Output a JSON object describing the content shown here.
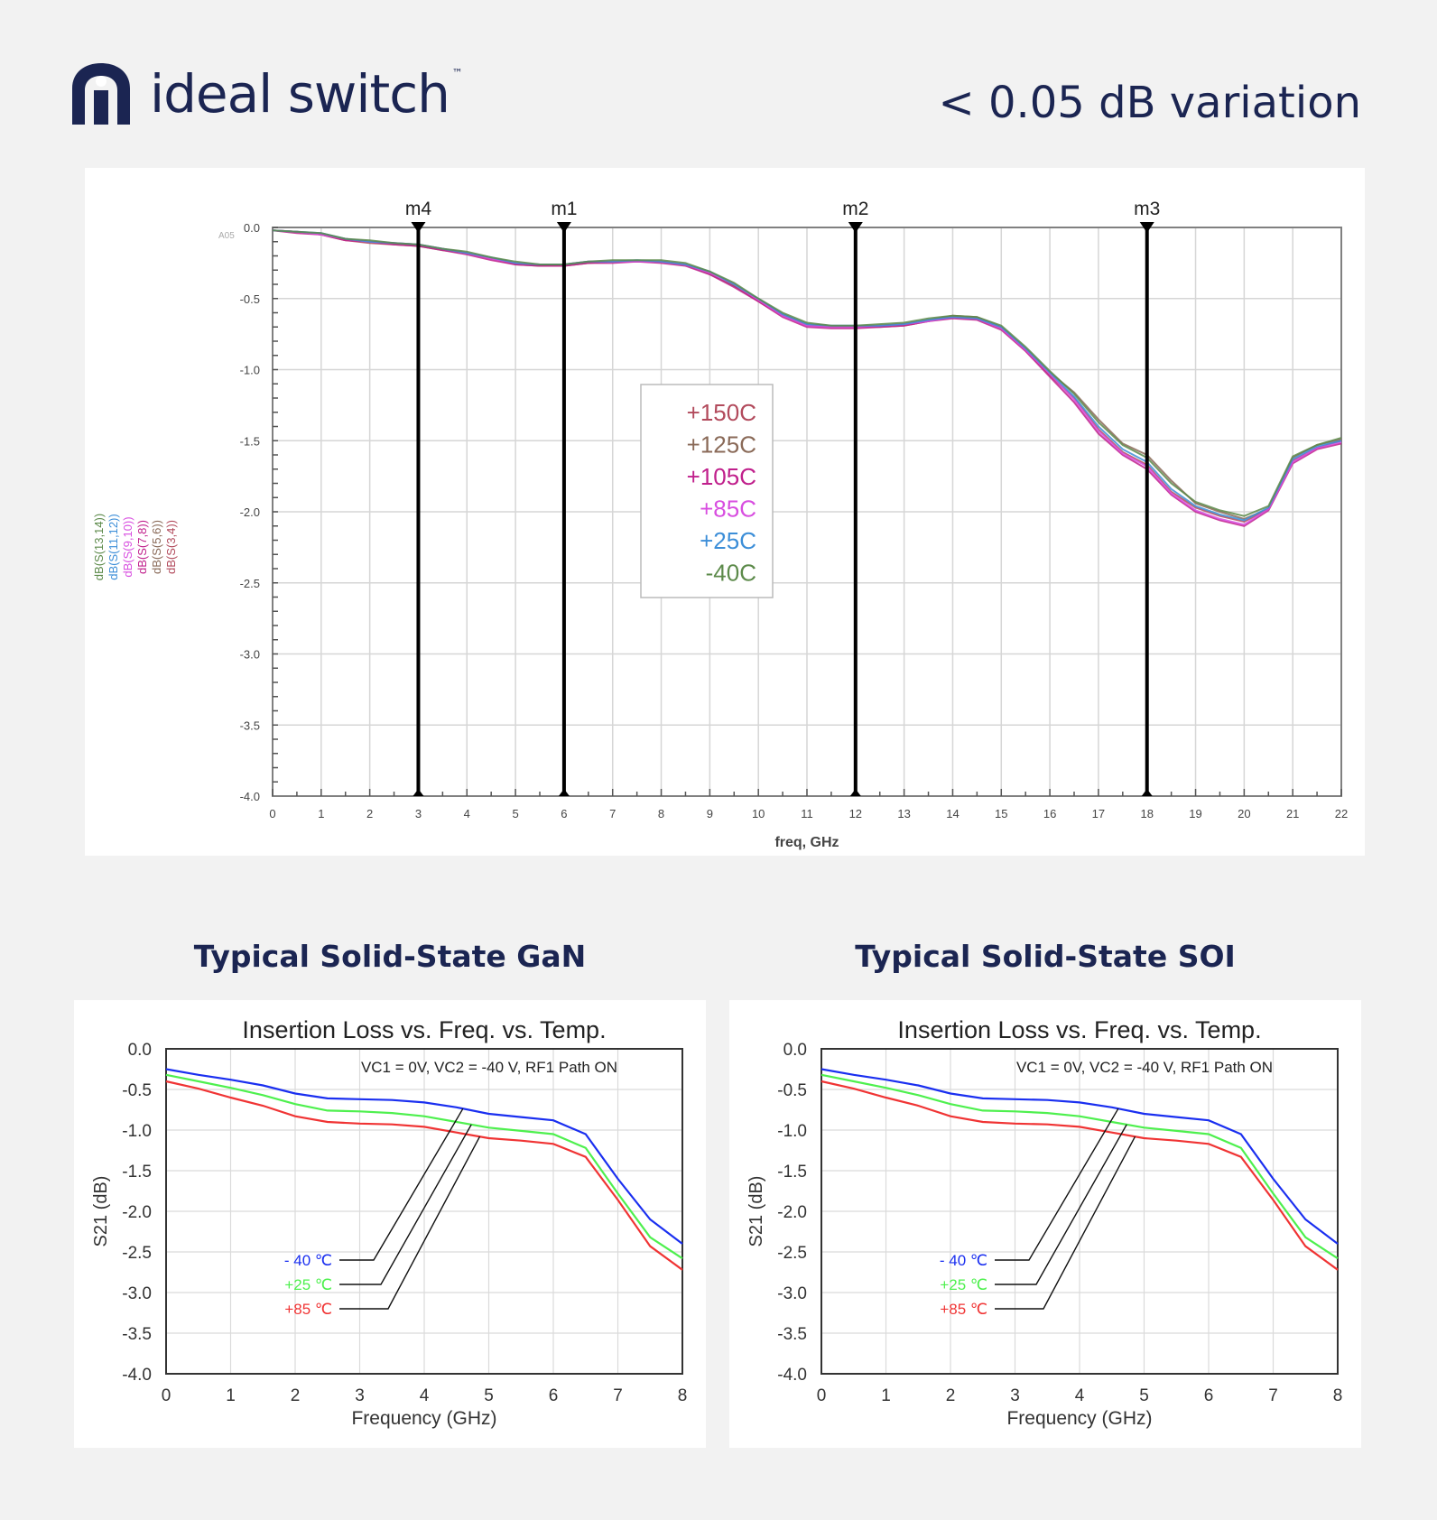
{
  "brand": {
    "name": "ideal switch",
    "tm": "™"
  },
  "headline": "< 0.05 dB variation",
  "colors": {
    "navy": "#1b2552",
    "blue": "#1a2ff0",
    "green": "#4ef04e",
    "red": "#f03434"
  },
  "icons": {
    "logo": "ideal-power-logo-icon"
  },
  "chart_data": [
    {
      "type": "line",
      "title": "",
      "xlabel": "freq, GHz",
      "ylabel": "",
      "xlim": [
        0,
        22
      ],
      "ylim": [
        -4.0,
        0.0
      ],
      "xticks": [
        "0",
        "1",
        "2",
        "3",
        "4",
        "5",
        "6",
        "7",
        "8",
        "9",
        "10",
        "11",
        "12",
        "13",
        "14",
        "15",
        "16",
        "17",
        "18",
        "19",
        "20",
        "21",
        "22"
      ],
      "yticks": [
        "0.0",
        "-0.5",
        "-1.0",
        "-1.5",
        "-2.0",
        "-2.5",
        "-3.0",
        "-3.5",
        "-4.0"
      ],
      "corner_label": "A05",
      "ylabel_series": [
        "dB(S(13,14))",
        "dB(S(11,12))",
        "dB(S(9,10))",
        "dB(S(7,8))",
        "dB(S(5,6))",
        "dB(S(3,4))"
      ],
      "markers": [
        {
          "name": "m4",
          "x": 3
        },
        {
          "name": "m1",
          "x": 6
        },
        {
          "name": "m2",
          "x": 12
        },
        {
          "name": "m3",
          "x": 18
        }
      ],
      "legend_position": "center",
      "grid": true,
      "x": [
        0,
        0.5,
        1,
        1.5,
        2,
        2.5,
        3,
        3.5,
        4,
        4.5,
        5,
        5.5,
        6,
        6.5,
        7,
        7.5,
        8,
        8.5,
        9,
        9.5,
        10,
        10.5,
        11,
        11.5,
        12,
        12.5,
        13,
        13.5,
        14,
        14.5,
        15,
        15.5,
        16,
        16.5,
        17,
        17.5,
        18,
        18.5,
        19,
        19.5,
        20,
        20.5,
        21,
        21.5,
        22
      ],
      "series": [
        {
          "name": "+150C",
          "color": "#b24a5c",
          "values": [
            -0.02,
            -0.03,
            -0.05,
            -0.09,
            -0.11,
            -0.12,
            -0.13,
            -0.15,
            -0.18,
            -0.22,
            -0.26,
            -0.27,
            -0.27,
            -0.25,
            -0.24,
            -0.24,
            -0.24,
            -0.26,
            -0.32,
            -0.41,
            -0.52,
            -0.62,
            -0.69,
            -0.7,
            -0.7,
            -0.7,
            -0.69,
            -0.66,
            -0.63,
            -0.64,
            -0.71,
            -0.86,
            -1.04,
            -1.2,
            -1.42,
            -1.58,
            -1.67,
            -1.86,
            -1.97,
            -2.03,
            -2.07,
            -1.98,
            -1.64,
            -1.55,
            -1.5
          ]
        },
        {
          "name": "+125C",
          "color": "#8a6a58",
          "values": [
            -0.02,
            -0.03,
            -0.05,
            -0.08,
            -0.1,
            -0.11,
            -0.13,
            -0.16,
            -0.18,
            -0.22,
            -0.25,
            -0.27,
            -0.26,
            -0.25,
            -0.24,
            -0.24,
            -0.24,
            -0.26,
            -0.33,
            -0.41,
            -0.51,
            -0.61,
            -0.68,
            -0.7,
            -0.7,
            -0.69,
            -0.68,
            -0.65,
            -0.62,
            -0.63,
            -0.7,
            -0.85,
            -1.02,
            -1.16,
            -1.35,
            -1.52,
            -1.6,
            -1.78,
            -1.94,
            -2.0,
            -2.05,
            -1.98,
            -1.62,
            -1.53,
            -1.49
          ]
        },
        {
          "name": "+105C",
          "color": "#c0208c",
          "values": [
            -0.02,
            -0.04,
            -0.05,
            -0.09,
            -0.1,
            -0.12,
            -0.13,
            -0.16,
            -0.19,
            -0.23,
            -0.26,
            -0.27,
            -0.27,
            -0.25,
            -0.25,
            -0.24,
            -0.25,
            -0.27,
            -0.33,
            -0.42,
            -0.52,
            -0.63,
            -0.7,
            -0.71,
            -0.71,
            -0.7,
            -0.69,
            -0.66,
            -0.64,
            -0.65,
            -0.72,
            -0.87,
            -1.05,
            -1.23,
            -1.45,
            -1.6,
            -1.7,
            -1.88,
            -2.0,
            -2.06,
            -2.1,
            -1.99,
            -1.66,
            -1.56,
            -1.52
          ]
        },
        {
          "name": "+85C",
          "color": "#d84ee0",
          "values": [
            -0.02,
            -0.03,
            -0.05,
            -0.08,
            -0.1,
            -0.11,
            -0.12,
            -0.15,
            -0.18,
            -0.22,
            -0.25,
            -0.26,
            -0.26,
            -0.24,
            -0.24,
            -0.24,
            -0.24,
            -0.26,
            -0.32,
            -0.4,
            -0.51,
            -0.62,
            -0.69,
            -0.7,
            -0.7,
            -0.69,
            -0.68,
            -0.66,
            -0.63,
            -0.64,
            -0.71,
            -0.86,
            -1.03,
            -1.21,
            -1.43,
            -1.59,
            -1.68,
            -1.87,
            -1.99,
            -2.05,
            -2.09,
            -1.98,
            -1.65,
            -1.55,
            -1.51
          ]
        },
        {
          "name": "+25C",
          "color": "#3c8ed8",
          "values": [
            -0.02,
            -0.03,
            -0.04,
            -0.08,
            -0.1,
            -0.11,
            -0.12,
            -0.15,
            -0.18,
            -0.21,
            -0.25,
            -0.26,
            -0.26,
            -0.24,
            -0.24,
            -0.23,
            -0.24,
            -0.26,
            -0.31,
            -0.4,
            -0.5,
            -0.61,
            -0.68,
            -0.69,
            -0.69,
            -0.69,
            -0.68,
            -0.65,
            -0.63,
            -0.64,
            -0.7,
            -0.85,
            -1.02,
            -1.19,
            -1.4,
            -1.56,
            -1.65,
            -1.84,
            -1.96,
            -2.02,
            -2.06,
            -1.97,
            -1.63,
            -1.54,
            -1.5
          ]
        },
        {
          "name": "-40C",
          "color": "#5c8a4a",
          "values": [
            -0.02,
            -0.03,
            -0.04,
            -0.08,
            -0.09,
            -0.11,
            -0.12,
            -0.15,
            -0.17,
            -0.21,
            -0.24,
            -0.26,
            -0.26,
            -0.24,
            -0.23,
            -0.23,
            -0.23,
            -0.25,
            -0.31,
            -0.39,
            -0.5,
            -0.6,
            -0.67,
            -0.69,
            -0.69,
            -0.68,
            -0.67,
            -0.64,
            -0.62,
            -0.63,
            -0.69,
            -0.84,
            -1.01,
            -1.17,
            -1.37,
            -1.53,
            -1.62,
            -1.8,
            -1.93,
            -1.99,
            -2.03,
            -1.96,
            -1.61,
            -1.53,
            -1.48
          ]
        }
      ]
    },
    {
      "type": "line",
      "section_title": "Typical Solid-State GaN",
      "title": "Insertion Loss vs. Freq. vs. Temp.",
      "subtitle": "VC1 = 0V, VC2 = -40 V, RF1 Path ON",
      "xlabel": "Frequency (GHz)",
      "ylabel": "S21 (dB)",
      "xlim": [
        0,
        8
      ],
      "ylim": [
        -4.0,
        0.0
      ],
      "xticks": [
        "0",
        "1",
        "2",
        "3",
        "4",
        "5",
        "6",
        "7",
        "8"
      ],
      "yticks": [
        "0.0",
        "-0.5",
        "-1.0",
        "-1.5",
        "-2.0",
        "-2.5",
        "-3.0",
        "-3.5",
        "-4.0"
      ],
      "grid": true,
      "legend_position": "lower-left",
      "x": [
        0,
        0.5,
        1,
        1.5,
        2,
        2.5,
        3,
        3.5,
        4,
        4.5,
        5,
        5.5,
        6,
        6.5,
        7,
        7.5,
        8
      ],
      "series": [
        {
          "name": "- 40 ℃",
          "color": "#1a2ff0",
          "values": [
            -0.25,
            -0.32,
            -0.38,
            -0.45,
            -0.55,
            -0.61,
            -0.62,
            -0.63,
            -0.66,
            -0.72,
            -0.8,
            -0.84,
            -0.88,
            -1.05,
            -1.6,
            -2.1,
            -2.4
          ]
        },
        {
          "name": "+25 ℃",
          "color": "#4ef04e",
          "values": [
            -0.32,
            -0.4,
            -0.48,
            -0.57,
            -0.68,
            -0.76,
            -0.77,
            -0.79,
            -0.83,
            -0.9,
            -0.97,
            -1.01,
            -1.05,
            -1.22,
            -1.78,
            -2.32,
            -2.58
          ]
        },
        {
          "name": "+85 ℃",
          "color": "#f03434",
          "values": [
            -0.4,
            -0.49,
            -0.6,
            -0.7,
            -0.83,
            -0.9,
            -0.92,
            -0.93,
            -0.96,
            -1.03,
            -1.1,
            -1.13,
            -1.17,
            -1.33,
            -1.86,
            -2.43,
            -2.72
          ]
        }
      ]
    },
    {
      "type": "line",
      "section_title": "Typical Solid-State SOI",
      "title": "Insertion Loss vs. Freq. vs. Temp.",
      "subtitle": "VC1 = 0V, VC2 = -40 V, RF1 Path ON",
      "xlabel": "Frequency (GHz)",
      "ylabel": "S21 (dB)",
      "xlim": [
        0,
        8
      ],
      "ylim": [
        -4.0,
        0.0
      ],
      "xticks": [
        "0",
        "1",
        "2",
        "3",
        "4",
        "5",
        "6",
        "7",
        "8"
      ],
      "yticks": [
        "0.0",
        "-0.5",
        "-1.0",
        "-1.5",
        "-2.0",
        "-2.5",
        "-3.0",
        "-3.5",
        "-4.0"
      ],
      "grid": true,
      "legend_position": "lower-left",
      "x": [
        0,
        0.5,
        1,
        1.5,
        2,
        2.5,
        3,
        3.5,
        4,
        4.5,
        5,
        5.5,
        6,
        6.5,
        7,
        7.5,
        8
      ],
      "series": [
        {
          "name": "- 40 ℃",
          "color": "#1a2ff0",
          "values": [
            -0.25,
            -0.32,
            -0.38,
            -0.45,
            -0.55,
            -0.61,
            -0.62,
            -0.63,
            -0.66,
            -0.72,
            -0.8,
            -0.84,
            -0.88,
            -1.05,
            -1.6,
            -2.1,
            -2.4
          ]
        },
        {
          "name": "+25 ℃",
          "color": "#4ef04e",
          "values": [
            -0.32,
            -0.4,
            -0.48,
            -0.57,
            -0.68,
            -0.76,
            -0.77,
            -0.79,
            -0.83,
            -0.9,
            -0.97,
            -1.01,
            -1.05,
            -1.22,
            -1.78,
            -2.32,
            -2.58
          ]
        },
        {
          "name": "+85 ℃",
          "color": "#f03434",
          "values": [
            -0.4,
            -0.49,
            -0.6,
            -0.7,
            -0.83,
            -0.9,
            -0.92,
            -0.93,
            -0.96,
            -1.03,
            -1.1,
            -1.13,
            -1.17,
            -1.33,
            -1.86,
            -2.43,
            -2.72
          ]
        }
      ]
    }
  ]
}
